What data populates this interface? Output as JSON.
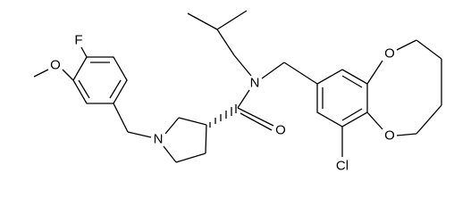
{
  "atoms": {
    "fluorine": "F",
    "methoxy_oxygen": "O",
    "pyrrolidine_nitrogen": "N",
    "amide_nitrogen": "N",
    "carbonyl_oxygen": "O",
    "ring_oxygen_upper": "O",
    "ring_oxygen_lower": "O",
    "chlorine": "Cl"
  }
}
